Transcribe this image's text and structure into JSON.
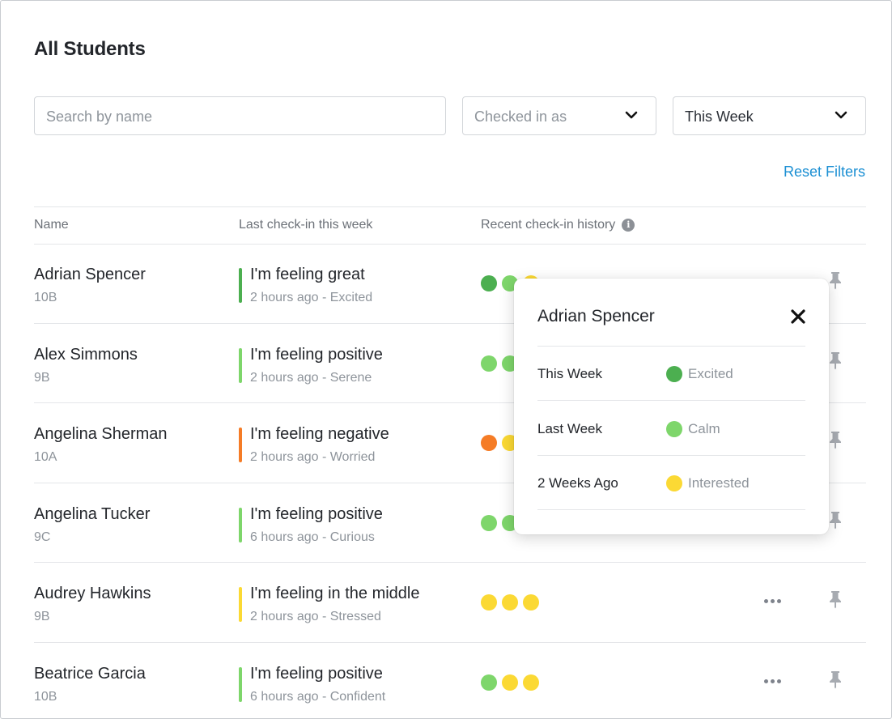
{
  "page": {
    "title": "All Students"
  },
  "filters": {
    "search_placeholder": "Search by name",
    "checked_in_as": "Checked in as",
    "period": "This Week",
    "reset_label": "Reset Filters"
  },
  "colors": {
    "excited": "#4caf50",
    "calm": "#7ed66b",
    "negative": "#f57c26",
    "middle": "#fbd934",
    "accent": "#1b8fd3"
  },
  "table": {
    "headers": [
      "Name",
      "Last check-in this week",
      "Recent check-in history"
    ],
    "rows": [
      {
        "name": "Adrian Spencer",
        "grade": "10B",
        "feeling": "I'm feeling great",
        "detail": "2 hours ago - Excited",
        "bar_color": "#4caf50",
        "history": [
          "#4caf50",
          "#7ed66b",
          "#fbd934"
        ]
      },
      {
        "name": "Alex Simmons",
        "grade": "9B",
        "feeling": "I'm feeling positive",
        "detail": "2 hours ago - Serene",
        "bar_color": "#7ed66b",
        "history": [
          "#7ed66b",
          "#7ed66b"
        ]
      },
      {
        "name": "Angelina Sherman",
        "grade": "10A",
        "feeling": "I'm feeling negative",
        "detail": "2 hours ago - Worried",
        "bar_color": "#f57c26",
        "history": [
          "#f57c26",
          "#fbd934"
        ]
      },
      {
        "name": "Angelina Tucker",
        "grade": "9C",
        "feeling": "I'm feeling positive",
        "detail": "6 hours ago - Curious",
        "bar_color": "#7ed66b",
        "history": [
          "#7ed66b",
          "#7ed66b"
        ]
      },
      {
        "name": "Audrey Hawkins",
        "grade": "9B",
        "feeling": "I'm feeling in the middle",
        "detail": "2 hours ago - Stressed",
        "bar_color": "#fbd934",
        "history": [
          "#fbd934",
          "#fbd934",
          "#fbd934"
        ]
      },
      {
        "name": "Beatrice Garcia",
        "grade": "10B",
        "feeling": "I'm feeling positive",
        "detail": "6 hours ago - Confident",
        "bar_color": "#7ed66b",
        "history": [
          "#7ed66b",
          "#fbd934",
          "#fbd934"
        ]
      }
    ]
  },
  "popover": {
    "title": "Adrian Spencer",
    "rows": [
      {
        "label": "This Week",
        "value": "Excited",
        "color": "#4caf50"
      },
      {
        "label": "Last Week",
        "value": "Calm",
        "color": "#7ed66b"
      },
      {
        "label": "2 Weeks Ago",
        "value": "Interested",
        "color": "#fbd934"
      }
    ]
  }
}
